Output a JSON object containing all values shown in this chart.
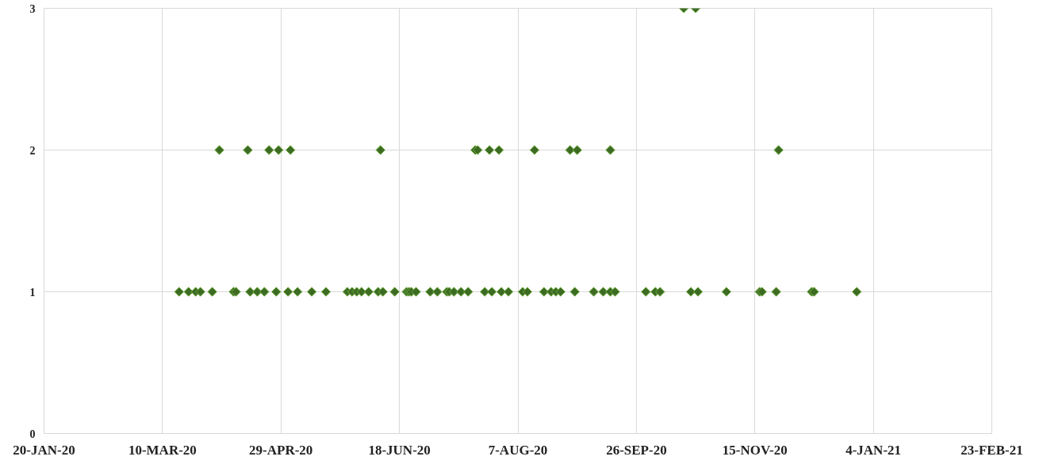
{
  "chart_data": {
    "type": "scatter",
    "marker": "diamond",
    "grid": true,
    "xlim": [
      "2020-01-20",
      "2021-02-23"
    ],
    "ylim": [
      0,
      3
    ],
    "yticks": [
      0,
      1,
      2,
      3
    ],
    "xticks": [
      {
        "value": "2020-01-20",
        "label": "20-JAN-20"
      },
      {
        "value": "2020-03-10",
        "label": "10-MAR-20"
      },
      {
        "value": "2020-04-29",
        "label": "29-APR-20"
      },
      {
        "value": "2020-06-18",
        "label": "18-JUN-20"
      },
      {
        "value": "2020-08-07",
        "label": "7-AUG-20"
      },
      {
        "value": "2020-09-26",
        "label": "26-SEP-20"
      },
      {
        "value": "2020-11-15",
        "label": "15-NOV-20"
      },
      {
        "value": "2021-01-04",
        "label": "4-JAN-21"
      },
      {
        "value": "2021-02-23",
        "label": "23-FEB-21"
      }
    ],
    "series": [
      {
        "color": "#3d6b24",
        "x": [
          "2020-03-17",
          "2020-03-21",
          "2020-03-24",
          "2020-03-26",
          "2020-03-31",
          "2020-04-09",
          "2020-04-10",
          "2020-04-16",
          "2020-04-19",
          "2020-04-22",
          "2020-04-27",
          "2020-05-02",
          "2020-05-06",
          "2020-05-12",
          "2020-05-18",
          "2020-05-27",
          "2020-05-29",
          "2020-05-31",
          "2020-06-02",
          "2020-06-05",
          "2020-06-09",
          "2020-06-11",
          "2020-06-16",
          "2020-06-21",
          "2020-06-22",
          "2020-06-23",
          "2020-06-25",
          "2020-07-01",
          "2020-07-04",
          "2020-07-08",
          "2020-07-09",
          "2020-07-11",
          "2020-07-14",
          "2020-07-17",
          "2020-07-24",
          "2020-07-27",
          "2020-07-31",
          "2020-08-03",
          "2020-08-09",
          "2020-08-11",
          "2020-08-18",
          "2020-08-21",
          "2020-08-23",
          "2020-08-25",
          "2020-08-31",
          "2020-09-08",
          "2020-09-12",
          "2020-09-15",
          "2020-09-17",
          "2020-09-30",
          "2020-10-04",
          "2020-10-06",
          "2020-10-19",
          "2020-10-22",
          "2020-11-03",
          "2020-11-17",
          "2020-11-18",
          "2020-11-24",
          "2020-12-09",
          "2020-12-10",
          "2020-12-28",
          "2020-04-03",
          "2020-04-15",
          "2020-04-24",
          "2020-04-28",
          "2020-05-03",
          "2020-06-10",
          "2020-07-20",
          "2020-07-21",
          "2020-07-26",
          "2020-07-30",
          "2020-08-14",
          "2020-08-29",
          "2020-09-01",
          "2020-09-15",
          "2020-11-25",
          "2020-10-16",
          "2020-10-21"
        ],
        "values": [
          1,
          1,
          1,
          1,
          1,
          1,
          1,
          1,
          1,
          1,
          1,
          1,
          1,
          1,
          1,
          1,
          1,
          1,
          1,
          1,
          1,
          1,
          1,
          1,
          1,
          1,
          1,
          1,
          1,
          1,
          1,
          1,
          1,
          1,
          1,
          1,
          1,
          1,
          1,
          1,
          1,
          1,
          1,
          1,
          1,
          1,
          1,
          1,
          1,
          1,
          1,
          1,
          1,
          1,
          1,
          1,
          1,
          1,
          1,
          1,
          1,
          2,
          2,
          2,
          2,
          2,
          2,
          2,
          2,
          2,
          2,
          2,
          2,
          2,
          2,
          2,
          3,
          3
        ]
      }
    ]
  }
}
